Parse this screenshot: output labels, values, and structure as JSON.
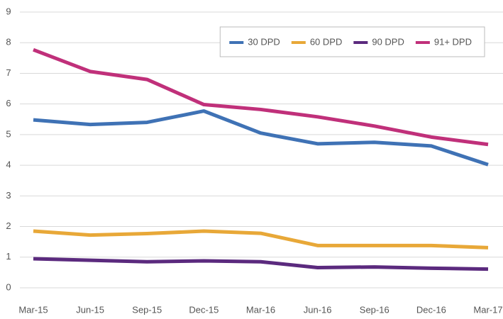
{
  "chart_data": {
    "type": "line",
    "categories": [
      "Mar-15",
      "Jun-15",
      "Sep-15",
      "Dec-15",
      "Mar-16",
      "Jun-16",
      "Sep-16",
      "Dec-16",
      "Mar-17"
    ],
    "series": [
      {
        "name": "30 DPD",
        "color": "#3f72b5",
        "values": [
          5.48,
          5.33,
          5.4,
          5.77,
          5.05,
          4.7,
          4.75,
          4.63,
          4.02
        ]
      },
      {
        "name": "60 DPD",
        "color": "#e8a838",
        "values": [
          1.85,
          1.72,
          1.77,
          1.85,
          1.78,
          1.38,
          1.38,
          1.38,
          1.31
        ]
      },
      {
        "name": "90 DPD",
        "color": "#5b2a7e",
        "values": [
          0.95,
          0.9,
          0.85,
          0.88,
          0.85,
          0.66,
          0.68,
          0.64,
          0.61
        ]
      },
      {
        "name": "91+ DPD",
        "color": "#c0307a",
        "values": [
          7.77,
          7.06,
          6.8,
          5.98,
          5.82,
          5.58,
          5.28,
          4.92,
          4.68
        ]
      }
    ],
    "ylim": [
      0,
      9
    ],
    "yticks": [
      0,
      1,
      2,
      3,
      4,
      5,
      6,
      7,
      8,
      9
    ],
    "grid": true,
    "legend": "upper right"
  }
}
